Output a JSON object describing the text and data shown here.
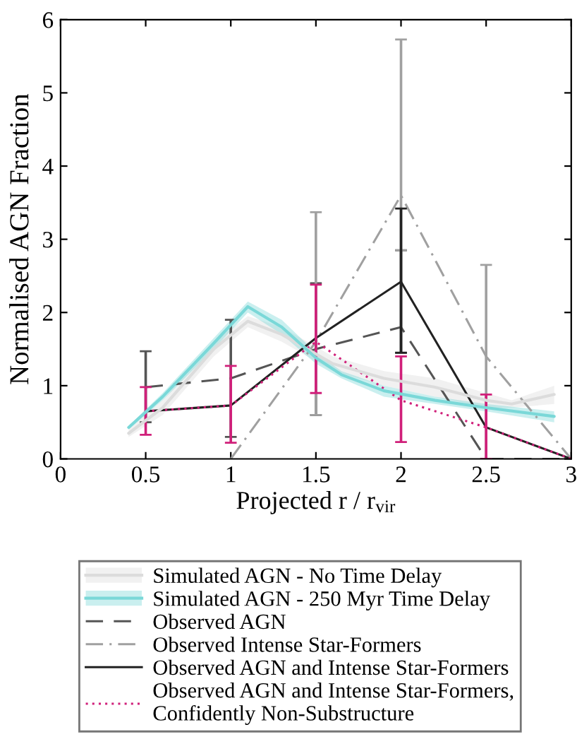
{
  "chart_data": {
    "type": "line",
    "xlabel": "Projected r / r$_{vir}$",
    "ylabel": "Normalised AGN Fraction",
    "xlim": [
      0,
      3
    ],
    "ylim": [
      0,
      6
    ],
    "xticks": [
      0,
      0.5,
      1,
      1.5,
      2,
      2.5,
      3
    ],
    "yticks": [
      0,
      1,
      2,
      3,
      4,
      5,
      6
    ],
    "grid": false,
    "legend": "bottom",
    "series": [
      {
        "name": "Simulated AGN - No Time Delay",
        "type": "line",
        "color": "#dcdcdc",
        "x": [
          0.4,
          0.6,
          0.9,
          1.1,
          1.3,
          1.6,
          1.9,
          2.2,
          2.5,
          2.65,
          2.9
        ],
        "values": [
          0.35,
          0.7,
          1.5,
          1.88,
          1.7,
          1.3,
          1.1,
          0.98,
          0.8,
          0.75,
          0.88
        ],
        "lower": [
          0.3,
          0.6,
          1.4,
          1.8,
          1.6,
          1.2,
          1.0,
          0.85,
          0.7,
          0.7,
          0.75
        ],
        "upper": [
          0.4,
          0.8,
          1.6,
          1.95,
          1.8,
          1.4,
          1.2,
          1.1,
          0.9,
          0.8,
          1.0
        ]
      },
      {
        "name": "Simulated AGN - 250 Myr Time Delay",
        "type": "line",
        "color": "#7ad8d8",
        "x": [
          0.4,
          0.6,
          0.9,
          1.1,
          1.3,
          1.5,
          1.65,
          1.9,
          2.2,
          2.5,
          2.9
        ],
        "values": [
          0.43,
          0.85,
          1.58,
          2.08,
          1.8,
          1.38,
          1.15,
          0.93,
          0.8,
          0.7,
          0.58
        ],
        "lower": [
          0.4,
          0.8,
          1.5,
          2.0,
          1.7,
          1.3,
          1.1,
          0.85,
          0.75,
          0.65,
          0.5
        ],
        "upper": [
          0.45,
          0.9,
          1.65,
          2.15,
          1.9,
          1.45,
          1.2,
          1.0,
          0.85,
          0.75,
          0.65
        ]
      },
      {
        "name": "Observed AGN",
        "color": "#555555",
        "line_style": "dashed",
        "x": [
          0.5,
          1,
          1.5,
          2,
          2.5,
          3
        ],
        "values": [
          0.98,
          1.1,
          1.5,
          1.8,
          0,
          0
        ],
        "errors": [
          [
            0.5,
            1.47
          ],
          [
            0.3,
            1.9
          ],
          [
            0.6,
            2.4
          ],
          [
            1.45,
            2.85
          ],
          null,
          null
        ]
      },
      {
        "name": "Observed Intense Star-Formers",
        "color": "#a0a0a0",
        "line_style": "dashdot",
        "x": [
          1,
          1.5,
          2,
          2.5,
          3
        ],
        "values": [
          0,
          1.6,
          3.6,
          1.4,
          0
        ],
        "errors": [
          null,
          [
            0.6,
            3.37
          ],
          [
            2.85,
            5.73
          ],
          [
            0,
            2.65
          ],
          null
        ]
      },
      {
        "name": "Observed AGN and Intense Star-Formers",
        "color": "#222222",
        "line_style": "solid",
        "x": [
          0.5,
          1,
          1.5,
          2,
          2.5,
          3
        ],
        "values": [
          0.65,
          0.73,
          1.65,
          2.42,
          0.43,
          0
        ],
        "errors": [
          null,
          null,
          null,
          [
            1.45,
            3.42
          ],
          null,
          null
        ]
      },
      {
        "name": "Observed AGN and Intense Star-Formers,\nConfidently Non-Substructure",
        "color": "#d0207a",
        "line_style": "dotted",
        "x": [
          0.5,
          1,
          1.5,
          2,
          2.5,
          3
        ],
        "values": [
          0.65,
          0.73,
          1.6,
          0.8,
          0.43,
          0
        ],
        "errors": [
          [
            0.33,
            0.98
          ],
          [
            0.22,
            1.27
          ],
          [
            0.9,
            2.38
          ],
          [
            0.23,
            1.4
          ],
          [
            0,
            0.88
          ],
          null
        ]
      }
    ]
  }
}
